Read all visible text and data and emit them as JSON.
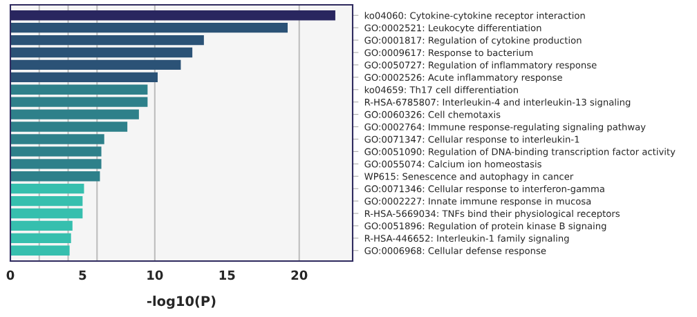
{
  "chart_data": {
    "type": "bar",
    "orientation": "horizontal",
    "xlabel": "-log10(P)",
    "categories": [
      "ko04060: Cytokine-cytokine receptor interaction",
      "GO:0002521: Leukocyte differentiation",
      "GO:0001817: Regulation of cytokine production",
      "GO:0009617: Response to bacterium",
      "GO:0050727: Regulation of inflammatory response",
      "GO:0002526: Acute inflammatory response",
      "ko04659: Th17 cell differentiation",
      "R-HSA-6785807: Interleukin-4 and interleukin-13 signaling",
      "GO:0060326: Cell chemotaxis",
      "GO:0002764: Immune response-regulating signaling pathway",
      "GO:0071347: Cellular response to interleukin-1",
      "GO:0051090: Regulation of DNA-binding transcription factor activity",
      "GO:0055074: Calcium ion homeostasis",
      "WP615: Senescence and autophagy in cancer",
      "GO:0071346: Cellular response to interferon-gamma",
      "GO:0002227: Innate immune response in mucosa",
      "R-HSA-5669034: TNFs bind their physiological receptors",
      "GO:0051896: Regulation of protein kinase B signaing",
      "R-HSA-446652: Interleukin-1 family signaling",
      "GO:0006968: Cellular defense response"
    ],
    "values": [
      22.5,
      19.2,
      13.4,
      12.6,
      11.8,
      10.2,
      9.5,
      9.5,
      8.9,
      8.1,
      6.5,
      6.3,
      6.3,
      6.2,
      5.1,
      5.0,
      5.0,
      4.3,
      4.2,
      4.1
    ],
    "colors": [
      "#29265f",
      "#2b5276",
      "#2b5276",
      "#2b5276",
      "#2b5276",
      "#2b5276",
      "#2e808a",
      "#2e808a",
      "#2e808a",
      "#2e808a",
      "#2e808a",
      "#2e808a",
      "#2e808a",
      "#2e808a",
      "#36bfae",
      "#36bfae",
      "#36bfae",
      "#36bfae",
      "#36bfae",
      "#36bfae"
    ],
    "xlim": [
      0,
      23.7
    ],
    "xticks": [
      0,
      5,
      10,
      15,
      20
    ],
    "ref_lines": [
      {
        "axis": "x",
        "value": 2,
        "color": "#bdbdbd"
      },
      {
        "axis": "x",
        "value": 4,
        "color": "#bdbdbd"
      },
      {
        "axis": "x",
        "value": 6,
        "color": "#bdbdbd"
      },
      {
        "axis": "x",
        "value": 10,
        "color": "#bdbdbd"
      },
      {
        "axis": "x",
        "value": 20,
        "color": "#bdbdbd"
      }
    ]
  }
}
